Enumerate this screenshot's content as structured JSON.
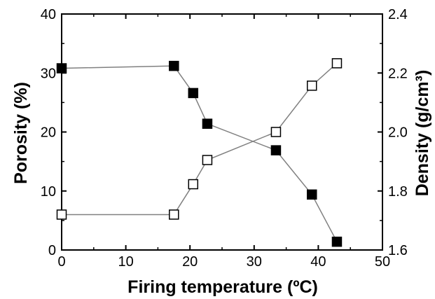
{
  "chart_data": {
    "type": "scatter",
    "xlabel": "Firing temperature (ºC)",
    "ylabel_left": "Porosity (%)",
    "ylabel_right": "Density (g/cm³)",
    "xlim": [
      0,
      50
    ],
    "ylim_left": [
      0,
      40
    ],
    "ylim_right": [
      1.6,
      2.4
    ],
    "x_ticks": [
      0,
      10,
      20,
      30,
      40,
      50
    ],
    "y_left_ticks": [
      0,
      10,
      20,
      30,
      40
    ],
    "y_right_ticks": [
      1.6,
      1.8,
      2.0,
      2.2,
      2.4
    ],
    "grid": false,
    "legend": "none",
    "line_color": "#808080",
    "marker_color": "#000000",
    "series": [
      {
        "axis": "left",
        "marker": "filled-square",
        "x": [
          0,
          17.5,
          20.5,
          22.7,
          33.4,
          39.0,
          42.9
        ],
        "y": [
          30.8,
          31.2,
          26.6,
          21.4,
          16.9,
          9.4,
          1.4
        ]
      },
      {
        "axis": "right",
        "marker": "open-square",
        "x": [
          0,
          17.5,
          20.5,
          22.7,
          33.4,
          39.0,
          42.9
        ],
        "y": [
          1.72,
          1.72,
          1.823,
          1.905,
          2.0,
          2.157,
          2.233
        ]
      }
    ]
  }
}
